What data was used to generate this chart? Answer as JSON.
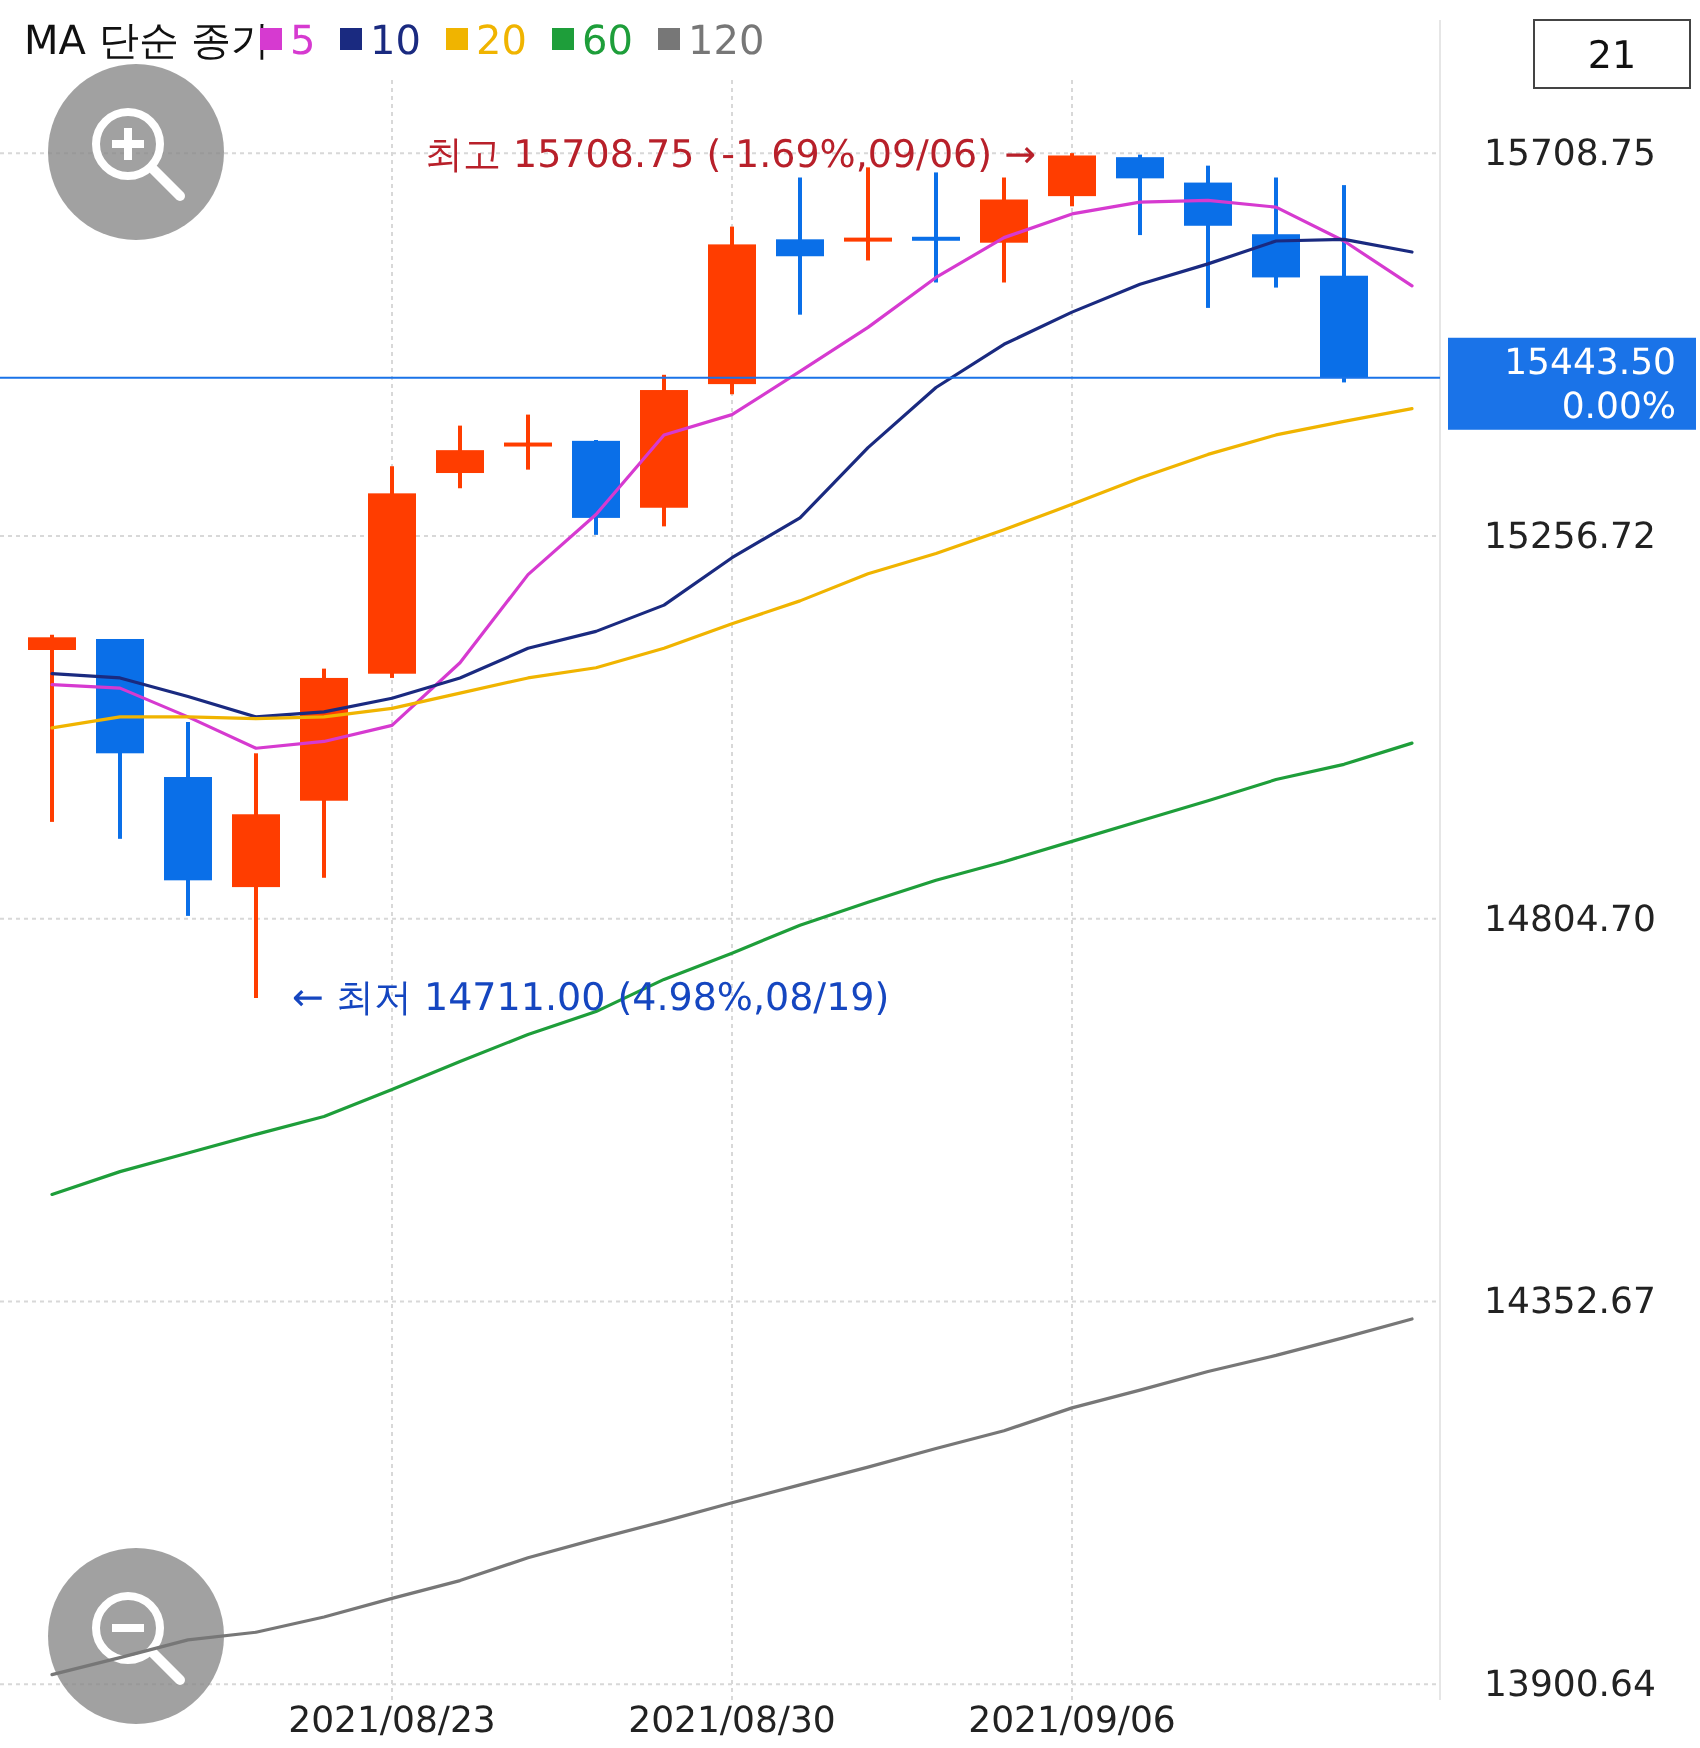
{
  "chart_data": {
    "type": "candlestick",
    "legend_title": "MA 단순 종가",
    "categories": [
      null,
      null,
      null,
      null,
      null,
      "2021/08/23",
      null,
      null,
      null,
      null,
      "2021/08/30",
      null,
      null,
      null,
      null,
      "2021/09/06",
      null,
      null,
      null,
      null,
      null
    ],
    "ohlc": [
      [
        15122,
        15140,
        14919,
        15137
      ],
      [
        15135,
        15135,
        14899,
        15000
      ],
      [
        14972,
        15037,
        14808,
        14850
      ],
      [
        14842,
        15000,
        14711,
        14928
      ],
      [
        14944,
        15100,
        14853,
        15089
      ],
      [
        15094,
        15339,
        15089,
        15307
      ],
      [
        15331,
        15387,
        15313,
        15358
      ],
      [
        15364,
        15400,
        15335,
        15367
      ],
      [
        15369,
        15370,
        15258,
        15278
      ],
      [
        15290,
        15447,
        15268,
        15429
      ],
      [
        15436,
        15622,
        15424,
        15601
      ],
      [
        15607,
        15680,
        15518,
        15587
      ],
      [
        15605,
        15692,
        15582,
        15609
      ],
      [
        15610,
        15686,
        15556,
        15607
      ],
      [
        15603,
        15680,
        15556,
        15654
      ],
      [
        15658,
        15708.75,
        15646,
        15706
      ],
      [
        15704,
        15707,
        15612,
        15679
      ],
      [
        15674,
        15694,
        15526,
        15623
      ],
      [
        15613,
        15680,
        15550,
        15562
      ],
      [
        15564,
        15671,
        15438,
        15443.5
      ],
      null
    ],
    "series": [
      {
        "name": "5",
        "type": "line",
        "color": "#d63ad0",
        "values": [
          15081,
          15077,
          15043,
          15006,
          15014,
          15033,
          15107,
          15211,
          15282,
          15376,
          15400,
          15451,
          15503,
          15562,
          15609,
          15637,
          15651,
          15653,
          15645,
          15605,
          15552
        ]
      },
      {
        "name": "10",
        "type": "line",
        "color": "#1a2a80",
        "values": [
          15094,
          15089,
          15067,
          15043,
          15049,
          15065,
          15089,
          15124,
          15144,
          15175,
          15231,
          15278,
          15361,
          15432,
          15483,
          15521,
          15554,
          15578,
          15605,
          15607,
          15592
        ]
      },
      {
        "name": "20",
        "type": "line",
        "color": "#f0b400",
        "values": [
          15030,
          15043,
          15043,
          15041,
          15043,
          15053,
          15071,
          15089,
          15101,
          15124,
          15153,
          15180,
          15212,
          15236,
          15264,
          15294,
          15325,
          15353,
          15376,
          15392,
          15407
        ]
      },
      {
        "name": "60",
        "type": "line",
        "color": "#1e9e3a",
        "values": [
          14479,
          14506,
          14528,
          14550,
          14571,
          14603,
          14636,
          14668,
          14695,
          14733,
          14764,
          14797,
          14824,
          14850,
          14872,
          14896,
          14920,
          14944,
          14969,
          14987,
          15012
        ]
      },
      {
        "name": "120",
        "type": "line",
        "color": "#777777",
        "values": [
          13912,
          13932,
          13953,
          13962,
          13980,
          14002,
          14023,
          14050,
          14072,
          14093,
          14115,
          14136,
          14157,
          14179,
          14200,
          14227,
          14248,
          14270,
          14289,
          14310,
          14332
        ]
      }
    ],
    "ylim": [
      13882,
      15866
    ],
    "yticks": [
      15708.75,
      15256.72,
      {
        "value": 14804.7,
        "label": "14804.70"
      },
      14352.67,
      13900.64
    ],
    "ref_lines": [
      {
        "axis": "y",
        "value": 15443.5,
        "label": "15443.50\n0.00%",
        "color": "#1a73e8"
      }
    ],
    "annotations": [
      {
        "text": "최고 15708.75 (-1.69%,09/06) →",
        "x": "2021/09/06",
        "y": 15708.75
      },
      "← 최저 14711.00 (4.98%,08/19)",
      "21"
    ],
    "grid": true,
    "legend": "top left"
  }
}
